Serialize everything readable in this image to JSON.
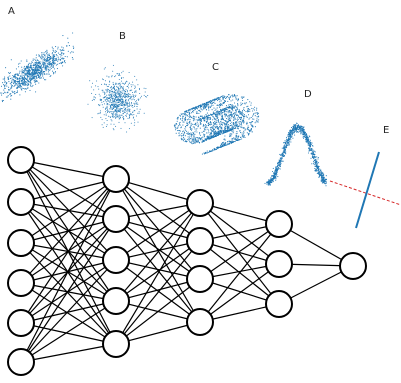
{
  "panels": [
    {
      "label": "A",
      "kind": "correlated-scatter"
    },
    {
      "label": "B",
      "kind": "isotropic-scatter"
    },
    {
      "label": "C",
      "kind": "swiss-roll-scatter"
    },
    {
      "label": "D",
      "kind": "s-curve-scatter"
    },
    {
      "label": "E",
      "kind": "line-projection"
    }
  ],
  "network": {
    "layer_sizes": [
      6,
      5,
      4,
      3,
      1
    ]
  },
  "colors": {
    "scatter": "#1f77b4",
    "projection_line": "#1f77b4",
    "projection_axis": "#d62728",
    "node_stroke": "#000000",
    "node_fill": "#ffffff"
  }
}
